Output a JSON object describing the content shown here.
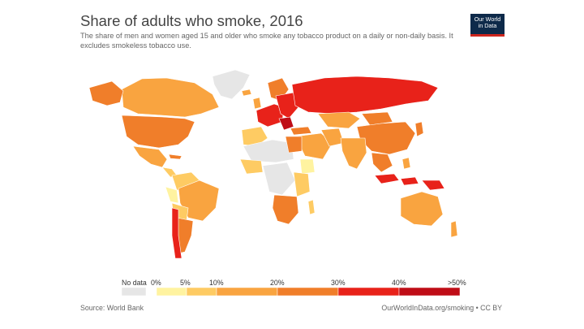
{
  "header": {
    "title": "Share of adults who smoke, 2016",
    "subtitle": "The share of men and women aged 15 and older who smoke any tobacco product on a daily or non-daily basis. It excludes smokeless tobacco use."
  },
  "logo": {
    "line1": "Our World",
    "line2": "in Data"
  },
  "legend": {
    "no_data_label": "No data",
    "no_data_color": "#e6e6e6",
    "ticks": [
      "0%",
      "5%",
      "10%",
      "20%",
      "30%",
      "40%",
      ">50%"
    ],
    "bin_colors": [
      "#fff3a0",
      "#fecb63",
      "#f9a440",
      "#f07e2a",
      "#e8221a",
      "#bf0d17"
    ]
  },
  "footer": {
    "source": "Source: World Bank",
    "credit": "OurWorldInData.org/smoking • CC BY"
  },
  "palette": {
    "no_data": "#e6e6e6",
    "light": "#fff3a0",
    "lowmid": "#fecb63",
    "mid": "#f9a440",
    "midhigh": "#f07e2a",
    "high": "#e8221a",
    "veryhigh": "#bf0d17"
  }
}
